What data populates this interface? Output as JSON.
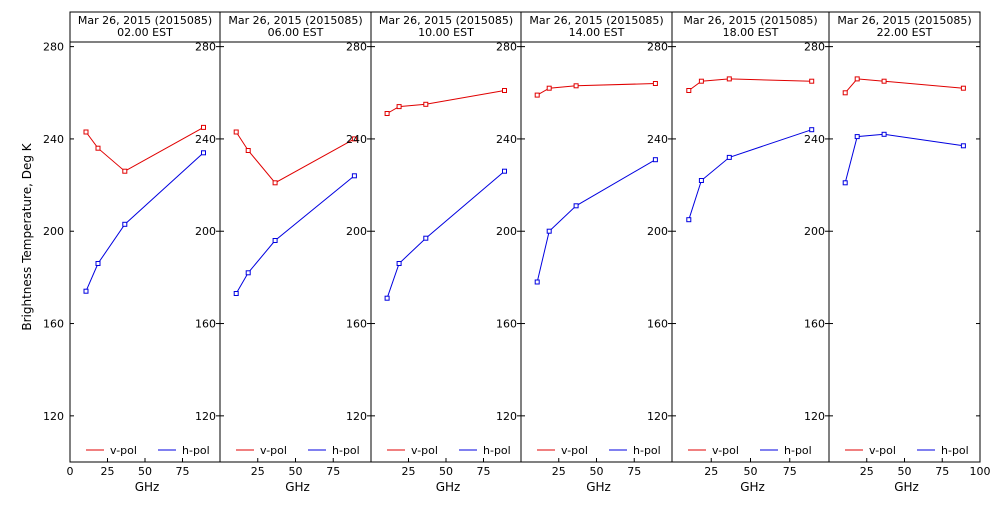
{
  "chart_data": {
    "type": "line",
    "ylabel": "Brightness Temperature, Deg K",
    "xlabel": "GHz",
    "ylim": [
      100,
      295
    ],
    "xlim": [
      0,
      100
    ],
    "yticks": [
      120,
      160,
      200,
      240,
      280
    ],
    "xticks": [
      0,
      25,
      50,
      75,
      100
    ],
    "grid": false,
    "legend_position": "bottom",
    "series_colors": {
      "v-pol": "#e00000",
      "h-pol": "#0000e0"
    },
    "panels": [
      {
        "title": "Mar 26, 2015 (2015085)",
        "subtitle": "02.00 EST",
        "x": [
          10.7,
          18.7,
          36.5,
          89.0
        ],
        "series": [
          {
            "name": "v-pol",
            "values": [
              243,
              236,
              226,
              245
            ]
          },
          {
            "name": "h-pol",
            "values": [
              174,
              186,
              203,
              234
            ]
          }
        ]
      },
      {
        "title": "Mar 26, 2015 (2015085)",
        "subtitle": "06.00 EST",
        "x": [
          10.7,
          18.7,
          36.5,
          89.0
        ],
        "series": [
          {
            "name": "v-pol",
            "values": [
              243,
              235,
              221,
              240
            ]
          },
          {
            "name": "h-pol",
            "values": [
              173,
              182,
              196,
              224
            ]
          }
        ]
      },
      {
        "title": "Mar 26, 2015 (2015085)",
        "subtitle": "10.00 EST",
        "x": [
          10.7,
          18.7,
          36.5,
          89.0
        ],
        "series": [
          {
            "name": "v-pol",
            "values": [
              251,
              254,
              255,
              261
            ]
          },
          {
            "name": "h-pol",
            "values": [
              171,
              186,
              197,
              226
            ]
          }
        ]
      },
      {
        "title": "Mar 26, 2015 (2015085)",
        "subtitle": "14.00 EST",
        "x": [
          10.7,
          18.7,
          36.5,
          89.0
        ],
        "series": [
          {
            "name": "v-pol",
            "values": [
              259,
              262,
              263,
              264
            ]
          },
          {
            "name": "h-pol",
            "values": [
              178,
              200,
              211,
              231
            ]
          }
        ]
      },
      {
        "title": "Mar 26, 2015 (2015085)",
        "subtitle": "18.00 EST",
        "x": [
          10.7,
          18.7,
          36.5,
          89.0
        ],
        "series": [
          {
            "name": "v-pol",
            "values": [
              261,
              265,
              266,
              265
            ]
          },
          {
            "name": "h-pol",
            "values": [
              205,
              222,
              232,
              244
            ]
          }
        ]
      },
      {
        "title": "Mar 26, 2015 (2015085)",
        "subtitle": "22.00 EST",
        "x": [
          10.7,
          18.7,
          36.5,
          89.0
        ],
        "series": [
          {
            "name": "v-pol",
            "values": [
              260,
              266,
              265,
              262
            ]
          },
          {
            "name": "h-pol",
            "values": [
              221,
              241,
              242,
              237
            ]
          }
        ]
      }
    ]
  }
}
